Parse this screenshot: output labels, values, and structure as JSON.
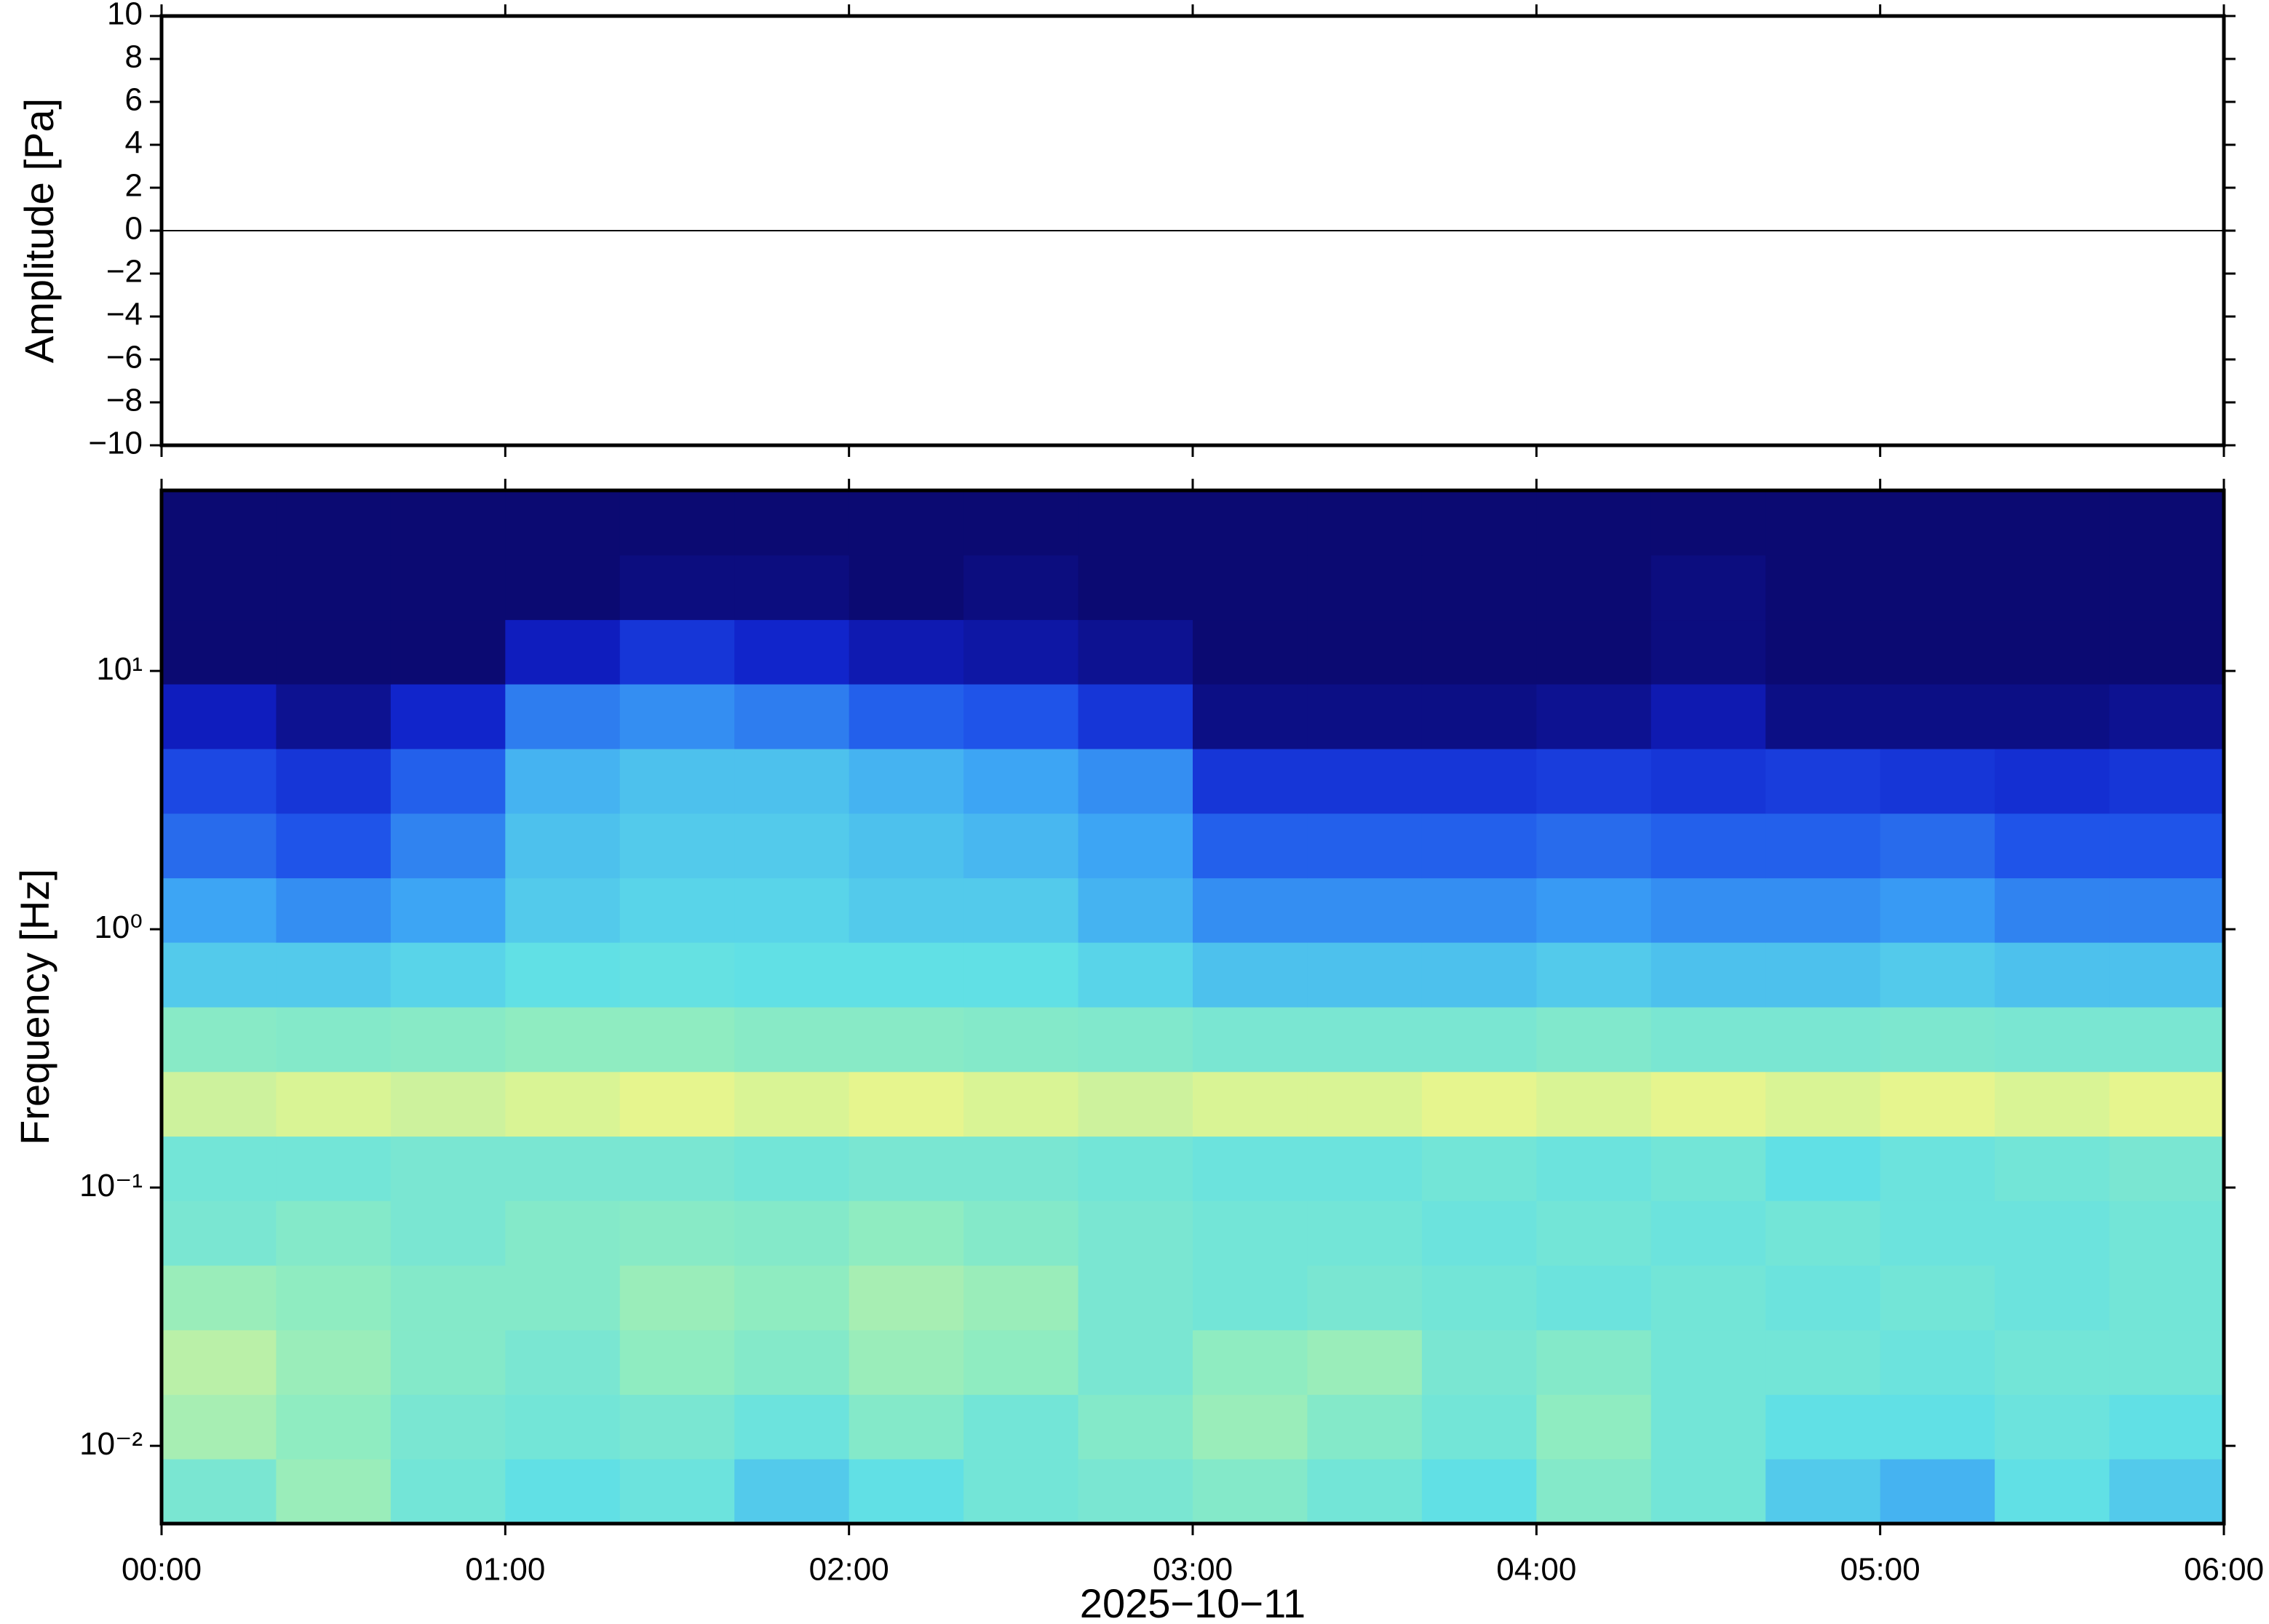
{
  "chart_data": [
    {
      "type": "line",
      "ylabel": "Amplitude [Pa]",
      "x": [
        0,
        360
      ],
      "values": [
        0,
        0
      ],
      "color": "#000000",
      "xlim": [
        0,
        360
      ],
      "ylim": [
        -10,
        10
      ],
      "yticks": [
        {
          "value": -10,
          "label": "−10"
        },
        {
          "value": -8,
          "label": "−8"
        },
        {
          "value": -6,
          "label": "−6"
        },
        {
          "value": -4,
          "label": "−4"
        },
        {
          "value": -2,
          "label": "−2"
        },
        0,
        2,
        4,
        6,
        8,
        10
      ]
    },
    {
      "type": "heatmap",
      "ylabel": "Frequency [Hz]",
      "xlabel": "2025−10−11",
      "log_y": true,
      "xlim": [
        0,
        360
      ],
      "ylim": [
        0.005,
        50
      ],
      "xticks": [
        {
          "value": 0,
          "label": "00:00"
        },
        {
          "value": 60,
          "label": "01:00"
        },
        {
          "value": 120,
          "label": "02:00"
        },
        {
          "value": 180,
          "label": "03:00"
        },
        {
          "value": 240,
          "label": "04:00"
        },
        {
          "value": 300,
          "label": "05:00"
        },
        {
          "value": 360,
          "label": "06:00"
        }
      ],
      "yticks": [
        {
          "value": 0.01,
          "label": "10⁻²"
        },
        {
          "value": 0.1,
          "label": "10⁻¹"
        },
        {
          "value": 1,
          "label": "10⁰"
        },
        {
          "value": 10,
          "label": "10¹"
        }
      ],
      "colors": [
        "#0b0a72",
        "#1020c8",
        "#1e50e8",
        "#3aa0f5",
        "#60e0e6",
        "#90ecc0",
        "#e6f58e"
      ],
      "xbins": [
        0,
        20,
        40,
        60,
        80,
        100,
        120,
        140,
        160,
        180,
        200,
        220,
        240,
        260,
        280,
        300,
        320,
        340,
        360
      ],
      "ybins": [
        0.005,
        0.0089,
        0.0158,
        0.0281,
        0.05,
        0.089,
        0.158,
        0.281,
        0.5,
        0.89,
        1.58,
        2.81,
        5,
        8.9,
        15.8,
        28.1,
        50
      ],
      "z": [
        [
          0.62,
          0.7,
          0.6,
          0.55,
          0.58,
          0.5,
          0.55,
          0.6,
          0.62,
          0.65,
          0.6,
          0.55,
          0.65,
          0.6,
          0.5,
          0.45,
          0.55,
          0.5
        ],
        [
          0.72,
          0.68,
          0.62,
          0.6,
          0.62,
          0.58,
          0.65,
          0.6,
          0.65,
          0.7,
          0.65,
          0.6,
          0.68,
          0.6,
          0.55,
          0.55,
          0.58,
          0.55
        ],
        [
          0.75,
          0.7,
          0.65,
          0.62,
          0.68,
          0.65,
          0.7,
          0.68,
          0.62,
          0.68,
          0.7,
          0.62,
          0.65,
          0.6,
          0.6,
          0.58,
          0.6,
          0.6
        ],
        [
          0.7,
          0.68,
          0.65,
          0.65,
          0.7,
          0.68,
          0.72,
          0.7,
          0.62,
          0.6,
          0.62,
          0.6,
          0.58,
          0.6,
          0.58,
          0.6,
          0.58,
          0.6
        ],
        [
          0.62,
          0.65,
          0.62,
          0.65,
          0.66,
          0.65,
          0.68,
          0.65,
          0.62,
          0.6,
          0.6,
          0.58,
          0.6,
          0.58,
          0.6,
          0.58,
          0.58,
          0.6
        ],
        [
          0.6,
          0.6,
          0.62,
          0.62,
          0.62,
          0.6,
          0.62,
          0.62,
          0.6,
          0.58,
          0.58,
          0.6,
          0.58,
          0.6,
          0.55,
          0.58,
          0.6,
          0.62
        ],
        [
          0.78,
          0.8,
          0.78,
          0.8,
          0.82,
          0.8,
          0.82,
          0.8,
          0.78,
          0.8,
          0.8,
          0.82,
          0.8,
          0.82,
          0.8,
          0.82,
          0.8,
          0.82
        ],
        [
          0.66,
          0.65,
          0.66,
          0.68,
          0.68,
          0.66,
          0.66,
          0.65,
          0.64,
          0.62,
          0.62,
          0.62,
          0.64,
          0.62,
          0.62,
          0.63,
          0.62,
          0.62
        ],
        [
          0.5,
          0.5,
          0.52,
          0.55,
          0.56,
          0.55,
          0.55,
          0.55,
          0.52,
          0.48,
          0.48,
          0.48,
          0.5,
          0.48,
          0.48,
          0.5,
          0.48,
          0.48
        ],
        [
          0.42,
          0.38,
          0.42,
          0.5,
          0.52,
          0.52,
          0.5,
          0.5,
          0.45,
          0.38,
          0.38,
          0.38,
          0.4,
          0.38,
          0.38,
          0.4,
          0.36,
          0.36
        ],
        [
          0.32,
          0.28,
          0.36,
          0.48,
          0.5,
          0.5,
          0.48,
          0.46,
          0.42,
          0.3,
          0.3,
          0.3,
          0.32,
          0.3,
          0.3,
          0.32,
          0.28,
          0.28
        ],
        [
          0.25,
          0.2,
          0.3,
          0.45,
          0.48,
          0.48,
          0.45,
          0.42,
          0.38,
          0.2,
          0.2,
          0.2,
          0.22,
          0.2,
          0.22,
          0.2,
          0.18,
          0.2
        ],
        [
          0.12,
          0.05,
          0.15,
          0.35,
          0.38,
          0.35,
          0.3,
          0.28,
          0.2,
          0.03,
          0.03,
          0.03,
          0.05,
          0.1,
          0.03,
          0.03,
          0.03,
          0.05
        ],
        [
          0,
          0,
          0,
          0.12,
          0.2,
          0.15,
          0.1,
          0.08,
          0.05,
          0,
          0,
          0,
          0,
          0.02,
          0,
          0,
          0,
          0
        ],
        [
          0,
          0,
          0,
          0,
          0.02,
          0.02,
          0,
          0.02,
          0,
          0,
          0,
          0,
          0,
          0.02,
          0,
          0,
          0,
          0
        ],
        [
          0,
          0,
          0,
          0,
          0,
          0,
          0,
          0,
          0,
          0,
          0,
          0,
          0,
          0,
          0,
          0,
          0,
          0
        ]
      ]
    }
  ]
}
